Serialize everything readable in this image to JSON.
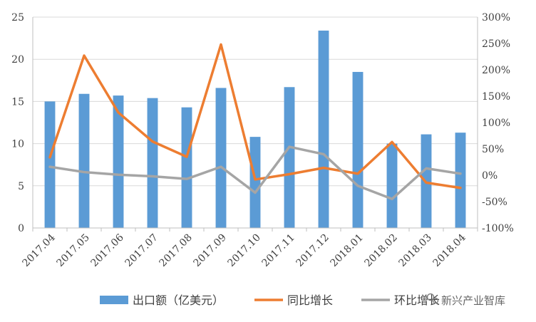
{
  "chart_data": {
    "type": "bar+line",
    "categories": [
      "2017.04",
      "2017.05",
      "2017.06",
      "2017.07",
      "2017.08",
      "2017.09",
      "2017.10",
      "2017.11",
      "2017.12",
      "2018.01",
      "2018.02",
      "2018.03",
      "2018.04"
    ],
    "series": [
      {
        "name": "出口额（亿美元）",
        "type": "bar",
        "axis": "left",
        "color": "#5B9BD5",
        "values": [
          15.0,
          15.9,
          15.7,
          15.4,
          14.3,
          16.6,
          10.8,
          16.7,
          23.4,
          18.5,
          10.0,
          11.1,
          11.3
        ]
      },
      {
        "name": "同比增长",
        "type": "line",
        "axis": "right",
        "color": "#ED7D31",
        "values": [
          0.34,
          2.27,
          1.19,
          0.64,
          0.35,
          2.48,
          -0.08,
          0.02,
          0.14,
          0.03,
          0.63,
          -0.14,
          -0.24
        ]
      },
      {
        "name": "环比增长",
        "type": "line",
        "axis": "right",
        "color": "#A5A5A5",
        "values": [
          0.16,
          0.06,
          0.01,
          -0.02,
          -0.07,
          0.16,
          -0.33,
          0.54,
          0.4,
          -0.2,
          -0.45,
          0.13,
          0.03
        ]
      }
    ],
    "y_left": {
      "min": 0,
      "max": 25,
      "ticks": [
        "0",
        "5",
        "10",
        "15",
        "20",
        "25"
      ]
    },
    "y_right": {
      "min": -1.0,
      "max": 3.0,
      "ticks": [
        "-100%",
        "-50%",
        "0%",
        "50%",
        "100%",
        "150%",
        "200%",
        "250%",
        "300%"
      ]
    },
    "grid": true,
    "legend_position": "bottom",
    "watermark": "新兴产业智库"
  }
}
